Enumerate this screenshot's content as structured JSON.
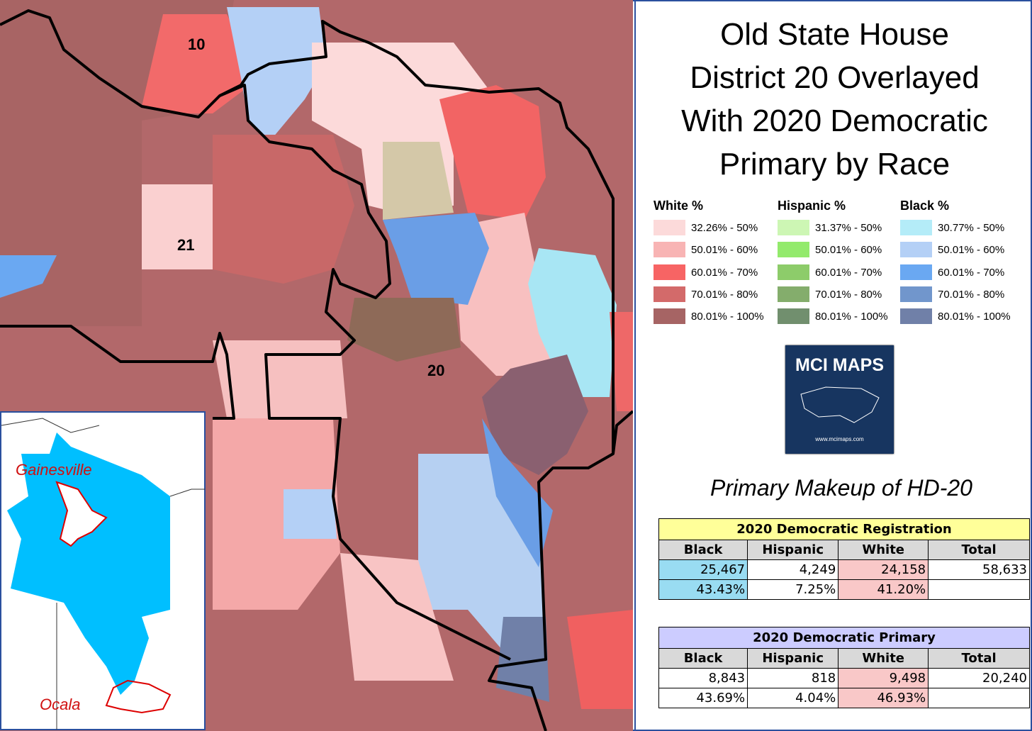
{
  "title_lines": [
    "Old State House",
    "District 20 Overlayed",
    "With 2020 Democratic",
    "Primary by Race"
  ],
  "map": {
    "district_labels": [
      "10",
      "21",
      "20"
    ],
    "inset_labels": [
      "Gainesville",
      "Ocala"
    ]
  },
  "legend": {
    "groups": [
      {
        "title": "White %",
        "items": [
          {
            "label": "32.26% - 50%",
            "color": "#fcdada"
          },
          {
            "label": "50.01% - 60%",
            "color": "#f8b4b4"
          },
          {
            "label": "60.01% - 70%",
            "color": "#f76464"
          },
          {
            "label": "70.01% - 80%",
            "color": "#d36a6a"
          },
          {
            "label": "80.01% - 100%",
            "color": "#a66464"
          }
        ]
      },
      {
        "title": "Hispanic %",
        "items": [
          {
            "label": "31.37% - 50%",
            "color": "#cdf6b4"
          },
          {
            "label": "50.01% - 60%",
            "color": "#93ea6c"
          },
          {
            "label": "60.01% - 70%",
            "color": "#8dcc6a"
          },
          {
            "label": "70.01% - 80%",
            "color": "#84ad6c"
          },
          {
            "label": "80.01% - 100%",
            "color": "#718f6e"
          }
        ]
      },
      {
        "title": "Black %",
        "items": [
          {
            "label": "30.77% - 50%",
            "color": "#b4ecf8"
          },
          {
            "label": "50.01% - 60%",
            "color": "#b4d0f6"
          },
          {
            "label": "60.01% - 70%",
            "color": "#6aa8f2"
          },
          {
            "label": "70.01% - 80%",
            "color": "#7196cc"
          },
          {
            "label": "80.01% - 100%",
            "color": "#7080a8"
          }
        ]
      }
    ]
  },
  "logo": {
    "name": "MCI MAPS",
    "url": "www.mcimaps.com"
  },
  "subtitle": "Primary Makeup of HD-20",
  "tables": [
    {
      "title": "2020 Democratic Registration",
      "columns": [
        "Black",
        "Hispanic",
        "White",
        "Total"
      ],
      "rows": [
        [
          "25,467",
          "4,249",
          "24,158",
          "58,633"
        ],
        [
          "43.43%",
          "7.25%",
          "41.20%",
          ""
        ]
      ]
    },
    {
      "title": "2020 Democratic Primary",
      "columns": [
        "Black",
        "Hispanic",
        "White",
        "Total"
      ],
      "rows": [
        [
          "8,843",
          "818",
          "9,498",
          "20,240"
        ],
        [
          "43.69%",
          "4.04%",
          "46.93%",
          ""
        ]
      ]
    }
  ]
}
